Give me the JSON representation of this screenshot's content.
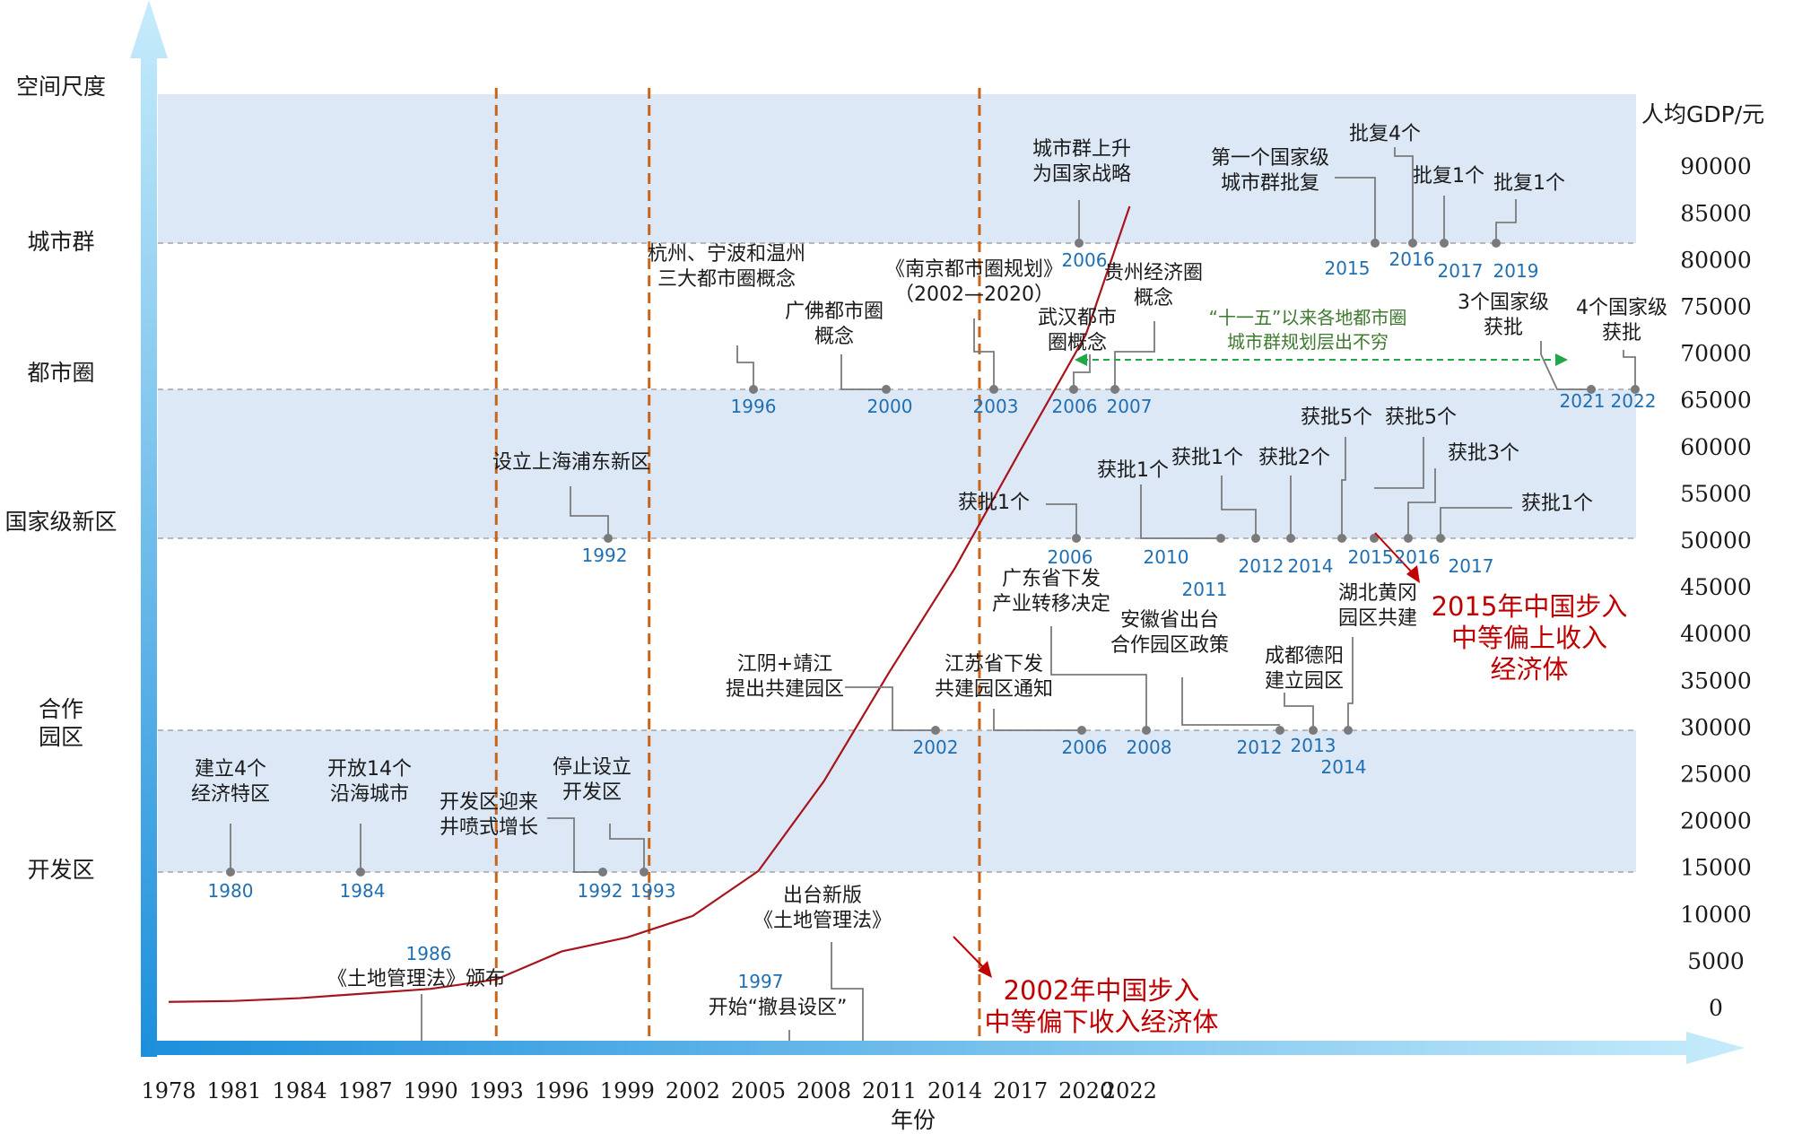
{
  "chart_data": {
    "type": "line",
    "y_left_label": "空间尺度",
    "levels": [
      "开发区",
      "合作园区",
      "国家级新区",
      "都市圈",
      "城市群"
    ],
    "xlabel": "年份",
    "x_ticks": [
      1978,
      1981,
      1984,
      1987,
      1990,
      1993,
      1996,
      1999,
      2002,
      2005,
      2008,
      2011,
      2014,
      2017,
      2020,
      2022
    ],
    "x_range": [
      1978,
      2022
    ],
    "ylabel_right": "人均GDP/元",
    "y_ticks": [
      0,
      5000,
      10000,
      15000,
      20000,
      25000,
      30000,
      35000,
      40000,
      45000,
      50000,
      55000,
      60000,
      65000,
      70000,
      75000,
      80000,
      85000,
      90000
    ],
    "ylim": [
      0,
      90000
    ],
    "phase_dividers": [
      1993,
      2000,
      2015
    ],
    "gdp_series": {
      "x": [
        1978,
        1981,
        1984,
        1987,
        1990,
        1993,
        1996,
        1999,
        2002,
        2005,
        2008,
        2011,
        2014,
        2017,
        2020,
        2022
      ],
      "values": [
        600,
        700,
        1000,
        1500,
        2000,
        3000,
        6000,
        7500,
        9800,
        14600,
        24200,
        35900,
        47000,
        59600,
        72000,
        85700
      ]
    },
    "events": [
      {
        "level": "开发区",
        "year": "1980",
        "label": [
          "建立4个",
          "经济特区"
        ]
      },
      {
        "level": "开发区",
        "year": "1984",
        "label": [
          "开放14个",
          "沿海城市"
        ]
      },
      {
        "level": "开发区",
        "year": "1992",
        "label": [
          "开发区迎来",
          "井喷式增长"
        ]
      },
      {
        "level": "开发区",
        "year": "1993",
        "label": [
          "停止设立",
          "开发区"
        ]
      },
      {
        "level": "合作园区",
        "year": "2002",
        "label": [
          "江阴+靖江",
          "提出共建园区"
        ]
      },
      {
        "level": "合作园区",
        "year": "2006",
        "label": [
          "江苏省下发",
          "共建园区通知"
        ]
      },
      {
        "level": "合作园区",
        "year": "2008",
        "label": [
          "广东省下发",
          "产业转移决定"
        ]
      },
      {
        "level": "合作园区",
        "year": "2012",
        "label": [
          "安徽省出台",
          "合作园区政策"
        ]
      },
      {
        "level": "合作园区",
        "year": "2013",
        "label": [
          "成都德阳",
          "建立园区"
        ]
      },
      {
        "level": "合作园区",
        "year": "2014",
        "label": [
          "湖北黄冈",
          "园区共建"
        ]
      },
      {
        "level": "国家级新区",
        "year": "1992",
        "label": [
          "设立上海浦东新区"
        ]
      },
      {
        "level": "国家级新区",
        "year": "2006",
        "label": [
          "获批1个"
        ]
      },
      {
        "level": "国家级新区",
        "year": "2010",
        "label": [
          "获批1个"
        ]
      },
      {
        "level": "国家级新区",
        "year": "2011",
        "label": [
          "获批1个"
        ]
      },
      {
        "level": "国家级新区",
        "year": "2012",
        "label": [
          "获批2个"
        ]
      },
      {
        "level": "国家级新区",
        "year": "2014",
        "label": [
          "获批5个"
        ]
      },
      {
        "level": "国家级新区",
        "year": "2015",
        "label": [
          "获批5个"
        ]
      },
      {
        "level": "国家级新区",
        "year": "2016",
        "label": [
          "获批3个"
        ]
      },
      {
        "level": "国家级新区",
        "year": "2017",
        "label": [
          "获批1个"
        ]
      },
      {
        "level": "都市圈",
        "year": "1996",
        "label": [
          "杭州、宁波和温州",
          "三大都市圈概念"
        ]
      },
      {
        "level": "都市圈",
        "year": "2000",
        "label": [
          "广佛都市圈",
          "概念"
        ]
      },
      {
        "level": "都市圈",
        "year": "2003",
        "label": [
          "《南京都市圈规划》",
          "（2002—2020）"
        ]
      },
      {
        "level": "都市圈",
        "year": "2006",
        "label": [
          "武汉都市",
          "圈概念"
        ]
      },
      {
        "level": "都市圈",
        "year": "2007",
        "label": [
          "贵州经济圈",
          "概念"
        ]
      },
      {
        "level": "都市圈",
        "year": "2021",
        "label": [
          "3个国家级",
          "获批"
        ]
      },
      {
        "level": "都市圈",
        "year": "2022",
        "label": [
          "4个国家级",
          "获批"
        ]
      },
      {
        "level": "城市群",
        "year": "2006",
        "label": [
          "城市群上升",
          "为国家战略"
        ]
      },
      {
        "level": "城市群",
        "year": "2015",
        "label": [
          "第一个国家级",
          "城市群批复"
        ]
      },
      {
        "level": "城市群",
        "year": "2016",
        "label": [
          "批复4个"
        ]
      },
      {
        "level": "城市群",
        "year": "2017",
        "label": [
          "批复1个"
        ]
      },
      {
        "level": "城市群",
        "year": "2019",
        "label": [
          "批复1个"
        ]
      },
      {
        "level": "axis",
        "year": "1986",
        "label": [
          "《土地管理法》颁布"
        ]
      },
      {
        "level": "axis",
        "year": "1997",
        "label": [
          "开始“撤县设区”"
        ]
      },
      {
        "level": "axis",
        "year": "",
        "label": [
          "出台新版",
          "《土地管理法》"
        ]
      }
    ],
    "annotations": [
      {
        "label": [
          "“十一五”以来各地都市圈",
          "城市群规划层出不穷"
        ],
        "color": "#3d7a2f"
      },
      {
        "label": [
          "2015年中国步入",
          "中等偏上收入",
          "经济体"
        ],
        "color": "#c00000"
      },
      {
        "label": [
          "2002年中国步入",
          "中等偏下收入经济体"
        ],
        "color": "#c00000"
      }
    ],
    "colors": {
      "band": "#dce8f5",
      "axis": "#39a9e6",
      "divider": "#c8651b",
      "gdp_line": "#a8141c",
      "year_text": "#1f6fb2",
      "green_arrow": "#21a64a"
    }
  }
}
